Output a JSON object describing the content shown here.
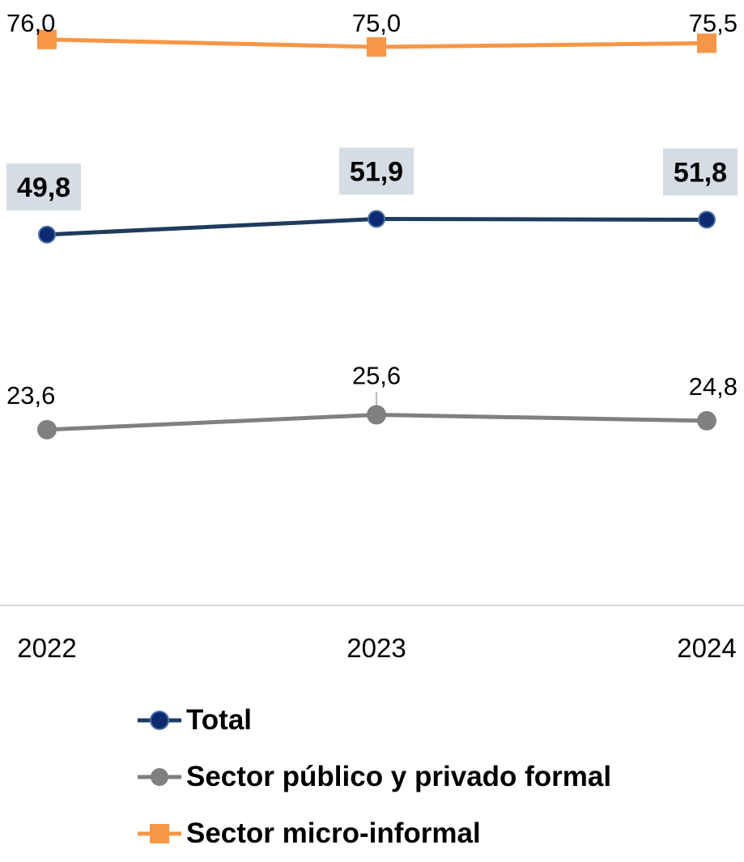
{
  "chart_data": {
    "type": "line",
    "x": [
      "2022",
      "2023",
      "2024"
    ],
    "series": [
      {
        "name": "Total",
        "values": [
          49.8,
          51.9,
          51.8
        ],
        "labels": [
          "49,8",
          "51,9",
          "51,8"
        ],
        "color": "#1F3B5E",
        "marker": "circle",
        "marker_fill": "#0B2A6F",
        "label_style": "bold-boxed",
        "label_bg": "#D6DCE4"
      },
      {
        "name": "Sector público y privado formal",
        "values": [
          23.6,
          25.6,
          24.8
        ],
        "labels": [
          "23,6",
          "25,6",
          "24,8"
        ],
        "color": "#808080",
        "marker": "circle",
        "marker_fill": "#808080",
        "label_style": "plain"
      },
      {
        "name": "Sector micro-informal",
        "values": [
          76.0,
          75.0,
          75.5
        ],
        "labels": [
          "76,0",
          "75,0",
          "75,5"
        ],
        "color": "#F79646",
        "marker": "square",
        "marker_fill": "#F79646",
        "label_style": "plain"
      }
    ],
    "title": "",
    "xlabel": "",
    "ylabel": "",
    "ylim": [
      0,
      80
    ],
    "y_axis_visible": false,
    "grid": false,
    "legend_position": "bottom"
  }
}
